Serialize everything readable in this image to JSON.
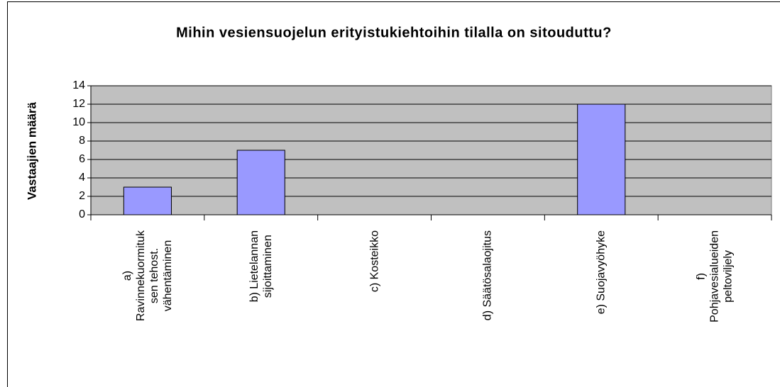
{
  "chart_data": {
    "type": "bar",
    "title": "Mihin vesiensuojelun erityistukiehtoihin tilalla on sitouduttu?",
    "y_label": "Vastaajien määrä",
    "categories": [
      "a)\nRavinnekuormituk\nsen tehost.\nvähentäminen",
      "b) Lietelannan\nsijoittaminen",
      "c) Kosteikko",
      "d) Säätösalaojitus",
      "e) Suojavyöhyke",
      "f)\nPohjavesialueiden\npeltoviljely"
    ],
    "values": [
      3,
      7,
      0,
      0,
      12,
      0
    ],
    "color": "#9999ff",
    "ylim": [
      0,
      14
    ],
    "yticks": [
      0,
      2,
      4,
      6,
      8,
      10,
      12,
      14
    ],
    "grid": true
  }
}
